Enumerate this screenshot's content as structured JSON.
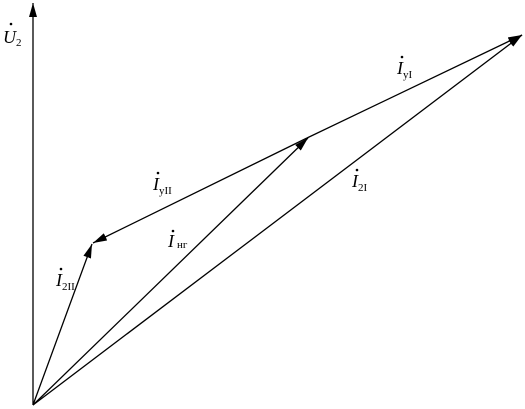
{
  "vectors": [
    {
      "symbol": "U",
      "subscript": "2"
    },
    {
      "symbol": "I",
      "subscript": "уI"
    },
    {
      "symbol": "I",
      "subscript": "уII"
    },
    {
      "symbol": "I",
      "subscript": "нг"
    },
    {
      "symbol": "I",
      "subscript": "2I"
    },
    {
      "symbol": "I",
      "subscript": "2II"
    }
  ]
}
